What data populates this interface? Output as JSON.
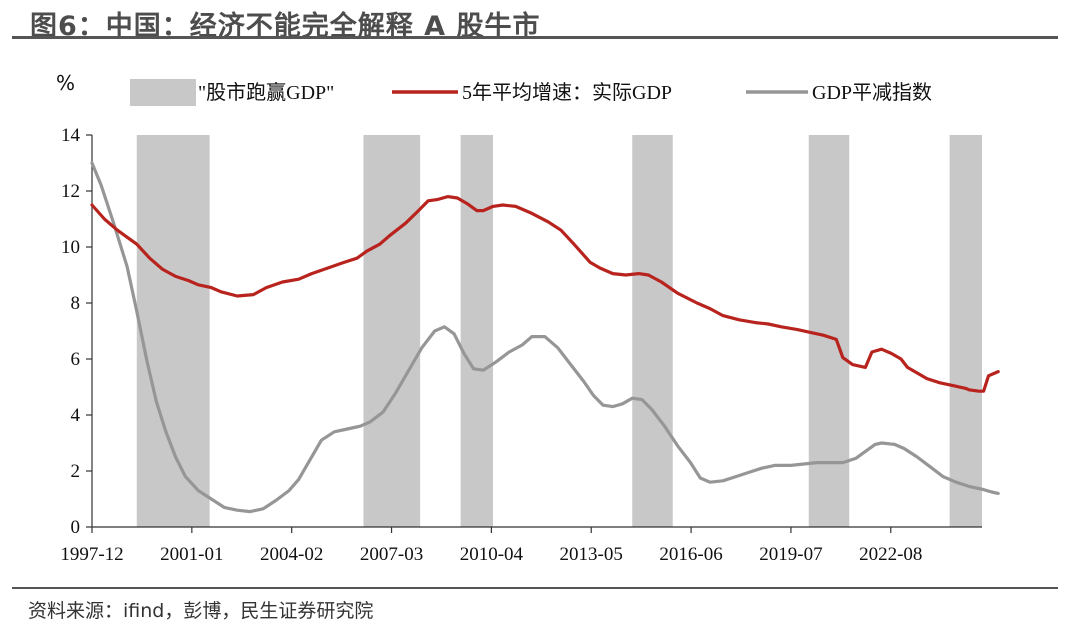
{
  "figure": {
    "title": "图6：中国：经济不能完全解释 A 股牛市",
    "source": "资料来源：ifind，彭博，民生证券研究院"
  },
  "colors": {
    "real_gdp": "#b8231e",
    "deflator": "#969696",
    "shade": "#c8c8c8",
    "axis": "#333333"
  },
  "chart_data": {
    "type": "line",
    "title": "",
    "ylabel": "%",
    "xlabel": "",
    "ylim": [
      0,
      14
    ],
    "yticks": [
      0,
      2,
      4,
      6,
      8,
      10,
      12,
      14
    ],
    "xlim": [
      1997.917,
      2025.4
    ],
    "xticks": [
      {
        "label": "1997-12",
        "x": 1997.917
      },
      {
        "label": "2001-01",
        "x": 2001.0
      },
      {
        "label": "2004-02",
        "x": 2004.083
      },
      {
        "label": "2007-03",
        "x": 2007.167
      },
      {
        "label": "2010-04",
        "x": 2010.25
      },
      {
        "label": "2013-05",
        "x": 2013.333
      },
      {
        "label": "2016-06",
        "x": 2016.417
      },
      {
        "label": "2019-07",
        "x": 2019.5
      },
      {
        "label": "2022-08",
        "x": 2022.583
      }
    ],
    "legend": {
      "placement": "top"
    },
    "shaded": {
      "name": "\"股市跑赢GDP\"",
      "intervals": [
        [
          1999.3,
          2001.55
        ],
        [
          2006.3,
          2008.05
        ],
        [
          2009.3,
          2010.3
        ],
        [
          2014.6,
          2015.85
        ],
        [
          2020.05,
          2021.3
        ],
        [
          2024.4,
          2025.4
        ]
      ]
    },
    "series": [
      {
        "name": "5年平均增速：实际GDP",
        "color_key": "real_gdp",
        "points": [
          [
            1997.917,
            11.5
          ],
          [
            1998.3,
            11.0
          ],
          [
            1998.7,
            10.6
          ],
          [
            1999.3,
            10.1
          ],
          [
            1999.7,
            9.6
          ],
          [
            2000.1,
            9.2
          ],
          [
            2000.5,
            8.95
          ],
          [
            2000.9,
            8.8
          ],
          [
            2001.2,
            8.65
          ],
          [
            2001.6,
            8.55
          ],
          [
            2001.9,
            8.4
          ],
          [
            2002.4,
            8.25
          ],
          [
            2002.9,
            8.3
          ],
          [
            2003.3,
            8.55
          ],
          [
            2003.8,
            8.75
          ],
          [
            2004.3,
            8.85
          ],
          [
            2004.7,
            9.05
          ],
          [
            2005.2,
            9.25
          ],
          [
            2005.7,
            9.45
          ],
          [
            2006.1,
            9.6
          ],
          [
            2006.4,
            9.85
          ],
          [
            2006.8,
            10.1
          ],
          [
            2007.1,
            10.4
          ],
          [
            2007.6,
            10.85
          ],
          [
            2008.0,
            11.3
          ],
          [
            2008.3,
            11.65
          ],
          [
            2008.6,
            11.7
          ],
          [
            2008.9,
            11.8
          ],
          [
            2009.2,
            11.75
          ],
          [
            2009.5,
            11.55
          ],
          [
            2009.8,
            11.3
          ],
          [
            2010.0,
            11.3
          ],
          [
            2010.3,
            11.45
          ],
          [
            2010.6,
            11.5
          ],
          [
            2011.0,
            11.45
          ],
          [
            2011.5,
            11.2
          ],
          [
            2012.0,
            10.9
          ],
          [
            2012.4,
            10.6
          ],
          [
            2012.8,
            10.1
          ],
          [
            2013.3,
            9.45
          ],
          [
            2013.6,
            9.25
          ],
          [
            2014.0,
            9.05
          ],
          [
            2014.4,
            9.0
          ],
          [
            2014.8,
            9.05
          ],
          [
            2015.1,
            9.0
          ],
          [
            2015.5,
            8.75
          ],
          [
            2016.0,
            8.35
          ],
          [
            2016.6,
            8.0
          ],
          [
            2017.0,
            7.8
          ],
          [
            2017.4,
            7.55
          ],
          [
            2017.9,
            7.4
          ],
          [
            2018.4,
            7.3
          ],
          [
            2018.8,
            7.25
          ],
          [
            2019.2,
            7.15
          ],
          [
            2019.7,
            7.05
          ],
          [
            2020.1,
            6.95
          ],
          [
            2020.5,
            6.85
          ],
          [
            2020.9,
            6.7
          ],
          [
            2021.1,
            6.05
          ],
          [
            2021.4,
            5.8
          ],
          [
            2021.8,
            5.7
          ],
          [
            2022.0,
            6.25
          ],
          [
            2022.3,
            6.35
          ],
          [
            2022.6,
            6.2
          ],
          [
            2022.9,
            6.0
          ],
          [
            2023.1,
            5.7
          ],
          [
            2023.4,
            5.5
          ],
          [
            2023.7,
            5.3
          ],
          [
            2024.1,
            5.15
          ],
          [
            2024.5,
            5.05
          ],
          [
            2024.9,
            4.95
          ],
          [
            2025.0,
            4.9
          ],
          [
            2025.3,
            4.85
          ],
          [
            2025.45,
            4.85
          ],
          [
            2025.6,
            5.4
          ],
          [
            2025.9,
            5.55
          ]
        ]
      },
      {
        "name": "GDP平减指数",
        "color_key": "deflator",
        "points": [
          [
            1997.917,
            13.0
          ],
          [
            1998.2,
            12.2
          ],
          [
            1998.6,
            10.8
          ],
          [
            1999.0,
            9.3
          ],
          [
            1999.3,
            7.7
          ],
          [
            1999.6,
            6.0
          ],
          [
            1999.9,
            4.5
          ],
          [
            2000.2,
            3.4
          ],
          [
            2000.5,
            2.5
          ],
          [
            2000.8,
            1.8
          ],
          [
            2001.2,
            1.3
          ],
          [
            2001.6,
            1.0
          ],
          [
            2002.0,
            0.7
          ],
          [
            2002.4,
            0.6
          ],
          [
            2002.8,
            0.55
          ],
          [
            2003.2,
            0.65
          ],
          [
            2003.6,
            0.95
          ],
          [
            2004.0,
            1.3
          ],
          [
            2004.3,
            1.7
          ],
          [
            2004.6,
            2.3
          ],
          [
            2005.0,
            3.1
          ],
          [
            2005.4,
            3.4
          ],
          [
            2005.8,
            3.5
          ],
          [
            2006.2,
            3.6
          ],
          [
            2006.5,
            3.75
          ],
          [
            2006.9,
            4.1
          ],
          [
            2007.3,
            4.8
          ],
          [
            2007.7,
            5.6
          ],
          [
            2008.1,
            6.4
          ],
          [
            2008.5,
            7.0
          ],
          [
            2008.8,
            7.15
          ],
          [
            2009.1,
            6.9
          ],
          [
            2009.4,
            6.2
          ],
          [
            2009.7,
            5.65
          ],
          [
            2010.0,
            5.6
          ],
          [
            2010.4,
            5.9
          ],
          [
            2010.8,
            6.25
          ],
          [
            2011.2,
            6.5
          ],
          [
            2011.5,
            6.8
          ],
          [
            2011.9,
            6.8
          ],
          [
            2012.3,
            6.4
          ],
          [
            2012.7,
            5.8
          ],
          [
            2013.1,
            5.2
          ],
          [
            2013.4,
            4.7
          ],
          [
            2013.7,
            4.35
          ],
          [
            2014.0,
            4.3
          ],
          [
            2014.3,
            4.4
          ],
          [
            2014.6,
            4.6
          ],
          [
            2014.9,
            4.55
          ],
          [
            2015.2,
            4.2
          ],
          [
            2015.6,
            3.6
          ],
          [
            2016.0,
            2.9
          ],
          [
            2016.4,
            2.3
          ],
          [
            2016.7,
            1.75
          ],
          [
            2017.0,
            1.6
          ],
          [
            2017.4,
            1.65
          ],
          [
            2017.8,
            1.8
          ],
          [
            2018.2,
            1.95
          ],
          [
            2018.6,
            2.1
          ],
          [
            2019.0,
            2.2
          ],
          [
            2019.5,
            2.2
          ],
          [
            2019.9,
            2.25
          ],
          [
            2020.3,
            2.3
          ],
          [
            2020.7,
            2.3
          ],
          [
            2021.1,
            2.3
          ],
          [
            2021.5,
            2.45
          ],
          [
            2021.8,
            2.7
          ],
          [
            2022.1,
            2.95
          ],
          [
            2022.3,
            3.0
          ],
          [
            2022.7,
            2.95
          ],
          [
            2023.0,
            2.8
          ],
          [
            2023.4,
            2.5
          ],
          [
            2023.8,
            2.15
          ],
          [
            2024.2,
            1.8
          ],
          [
            2024.6,
            1.6
          ],
          [
            2025.0,
            1.45
          ],
          [
            2025.4,
            1.35
          ],
          [
            2025.7,
            1.25
          ],
          [
            2025.9,
            1.2
          ]
        ]
      }
    ]
  }
}
